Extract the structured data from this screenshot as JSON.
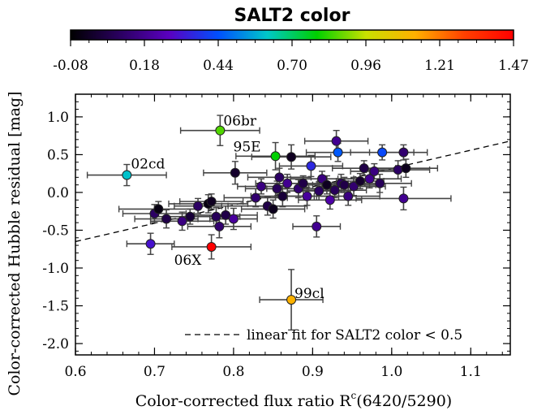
{
  "chart_data": {
    "type": "scatter",
    "colorbar": {
      "title": "SALT2 color",
      "ticks": [
        "-0.08",
        "0.18",
        "0.44",
        "0.70",
        "0.96",
        "1.21",
        "1.47"
      ],
      "range": [
        -0.08,
        1.47
      ],
      "colors": [
        "#000000",
        "#2a0060",
        "#5a00c0",
        "#0050ff",
        "#00c8c8",
        "#00d000",
        "#c8e000",
        "#ffb000",
        "#ff4000",
        "#ff0000"
      ]
    },
    "xlabel": "Color-corrected flux ratio R",
    "xlabel_sup": "c",
    "xlabel_suffix": "(6420/5290)",
    "ylabel": "Color-corrected Hubble residual   [mag]",
    "xlim": [
      0.6,
      1.15
    ],
    "ylim": [
      -2.15,
      1.3
    ],
    "xticks": [
      {
        "value": 0.6,
        "label": "0.6"
      },
      {
        "value": 0.7,
        "label": "0.7"
      },
      {
        "value": 0.8,
        "label": "0.8"
      },
      {
        "value": 0.9,
        "label": "0.9"
      },
      {
        "value": 1.0,
        "label": "1.0"
      },
      {
        "value": 1.1,
        "label": "1.1"
      }
    ],
    "yticks": [
      {
        "value": 1.0,
        "label": "1.0"
      },
      {
        "value": 0.5,
        "label": "0.5"
      },
      {
        "value": 0.0,
        "label": "0.0"
      },
      {
        "value": -0.5,
        "label": "-0.5"
      },
      {
        "value": -1.0,
        "label": "-1.0"
      },
      {
        "value": -1.5,
        "label": "-1.5"
      },
      {
        "value": -2.0,
        "label": "-2.0"
      }
    ],
    "fit_line": {
      "x": [
        0.6,
        1.15
      ],
      "y": [
        -0.65,
        0.68
      ]
    },
    "legend": {
      "label": "linear fit for SALT2 color < 0.5",
      "position": "bottom-right"
    },
    "points": [
      {
        "x": 0.665,
        "y": 0.23,
        "xerr": 0.05,
        "yerr": 0.14,
        "c": 0.6,
        "label": "02cd"
      },
      {
        "x": 0.783,
        "y": 0.82,
        "xerr": 0.05,
        "yerr": 0.2,
        "c": 0.85,
        "label": "06br"
      },
      {
        "x": 0.853,
        "y": 0.48,
        "xerr": 0.05,
        "yerr": 0.18,
        "c": 0.78,
        "label": "95E"
      },
      {
        "x": 0.772,
        "y": -0.72,
        "xerr": 0.05,
        "yerr": 0.16,
        "c": 1.47,
        "label": "06X"
      },
      {
        "x": 0.873,
        "y": -1.42,
        "xerr": 0.04,
        "yerr": 0.4,
        "c": 1.12,
        "label": "99cl"
      },
      {
        "x": 0.695,
        "y": -0.68,
        "xerr": 0.03,
        "yerr": 0.14,
        "c": 0.3
      },
      {
        "x": 0.7,
        "y": -0.28,
        "xerr": 0.04,
        "yerr": 0.12,
        "c": 0.1
      },
      {
        "x": 0.705,
        "y": -0.22,
        "xerr": 0.05,
        "yerr": 0.1,
        "c": -0.05
      },
      {
        "x": 0.715,
        "y": -0.35,
        "xerr": 0.04,
        "yerr": 0.12,
        "c": 0.05
      },
      {
        "x": 0.735,
        "y": -0.38,
        "xerr": 0.04,
        "yerr": 0.12,
        "c": 0.15
      },
      {
        "x": 0.745,
        "y": -0.32,
        "xerr": 0.05,
        "yerr": 0.1,
        "c": 0.02
      },
      {
        "x": 0.755,
        "y": -0.18,
        "xerr": 0.03,
        "yerr": 0.1,
        "c": 0.1
      },
      {
        "x": 0.768,
        "y": -0.15,
        "xerr": 0.05,
        "yerr": 0.12,
        "c": -0.05
      },
      {
        "x": 0.772,
        "y": -0.12,
        "xerr": 0.04,
        "yerr": 0.1,
        "c": -0.02
      },
      {
        "x": 0.778,
        "y": -0.32,
        "xerr": 0.03,
        "yerr": 0.12,
        "c": 0.08
      },
      {
        "x": 0.782,
        "y": -0.45,
        "xerr": 0.04,
        "yerr": 0.15,
        "c": 0.12
      },
      {
        "x": 0.79,
        "y": -0.3,
        "xerr": 0.04,
        "yerr": 0.12,
        "c": 0.05
      },
      {
        "x": 0.8,
        "y": -0.35,
        "xerr": 0.03,
        "yerr": 0.14,
        "c": 0.2
      },
      {
        "x": 0.802,
        "y": 0.26,
        "xerr": 0.04,
        "yerr": 0.15,
        "c": 0.0
      },
      {
        "x": 0.828,
        "y": -0.07,
        "xerr": 0.04,
        "yerr": 0.12,
        "c": 0.12
      },
      {
        "x": 0.835,
        "y": 0.08,
        "xerr": 0.03,
        "yerr": 0.1,
        "c": 0.15
      },
      {
        "x": 0.843,
        "y": -0.18,
        "xerr": 0.05,
        "yerr": 0.12,
        "c": 0.05
      },
      {
        "x": 0.85,
        "y": -0.22,
        "xerr": 0.04,
        "yerr": 0.12,
        "c": -0.03
      },
      {
        "x": 0.855,
        "y": 0.05,
        "xerr": 0.04,
        "yerr": 0.1,
        "c": 0.08
      },
      {
        "x": 0.858,
        "y": 0.2,
        "xerr": 0.04,
        "yerr": 0.12,
        "c": 0.1
      },
      {
        "x": 0.862,
        "y": -0.05,
        "xerr": 0.04,
        "yerr": 0.14,
        "c": 0.02
      },
      {
        "x": 0.868,
        "y": 0.12,
        "xerr": 0.04,
        "yerr": 0.12,
        "c": 0.18
      },
      {
        "x": 0.873,
        "y": 0.47,
        "xerr": 0.05,
        "yerr": 0.16,
        "c": -0.02
      },
      {
        "x": 0.882,
        "y": 0.05,
        "xerr": 0.04,
        "yerr": 0.12,
        "c": 0.12
      },
      {
        "x": 0.888,
        "y": 0.12,
        "xerr": 0.03,
        "yerr": 0.1,
        "c": 0.05
      },
      {
        "x": 0.893,
        "y": -0.05,
        "xerr": 0.04,
        "yerr": 0.12,
        "c": 0.2
      },
      {
        "x": 0.898,
        "y": 0.35,
        "xerr": 0.04,
        "yerr": 0.14,
        "c": 0.35
      },
      {
        "x": 0.905,
        "y": -0.45,
        "xerr": 0.03,
        "yerr": 0.14,
        "c": 0.18
      },
      {
        "x": 0.908,
        "y": 0.02,
        "xerr": 0.04,
        "yerr": 0.12,
        "c": 0.1
      },
      {
        "x": 0.912,
        "y": 0.18,
        "xerr": 0.04,
        "yerr": 0.1,
        "c": 0.15
      },
      {
        "x": 0.918,
        "y": 0.1,
        "xerr": 0.03,
        "yerr": 0.12,
        "c": -0.02
      },
      {
        "x": 0.922,
        "y": -0.1,
        "xerr": 0.04,
        "yerr": 0.12,
        "c": 0.22
      },
      {
        "x": 0.928,
        "y": 0.03,
        "xerr": 0.04,
        "yerr": 0.1,
        "c": 0.08
      },
      {
        "x": 0.93,
        "y": 0.68,
        "xerr": 0.04,
        "yerr": 0.14,
        "c": 0.18
      },
      {
        "x": 0.932,
        "y": 0.53,
        "xerr": 0.04,
        "yerr": 0.12,
        "c": 0.45
      },
      {
        "x": 0.936,
        "y": 0.12,
        "xerr": 0.03,
        "yerr": 0.12,
        "c": 0.1
      },
      {
        "x": 0.94,
        "y": 0.1,
        "xerr": 0.04,
        "yerr": 0.1,
        "c": 0.05
      },
      {
        "x": 0.945,
        "y": -0.05,
        "xerr": 0.04,
        "yerr": 0.12,
        "c": 0.15
      },
      {
        "x": 0.952,
        "y": 0.08,
        "xerr": 0.04,
        "yerr": 0.12,
        "c": 0.12
      },
      {
        "x": 0.96,
        "y": 0.15,
        "xerr": 0.03,
        "yerr": 0.1,
        "c": 0.0
      },
      {
        "x": 0.965,
        "y": 0.32,
        "xerr": 0.04,
        "yerr": 0.1,
        "c": 0.05
      },
      {
        "x": 0.972,
        "y": 0.18,
        "xerr": 0.04,
        "yerr": 0.12,
        "c": 0.18
      },
      {
        "x": 0.978,
        "y": 0.28,
        "xerr": 0.03,
        "yerr": 0.1,
        "c": 0.15
      },
      {
        "x": 0.985,
        "y": 0.12,
        "xerr": 0.04,
        "yerr": 0.12,
        "c": 0.08
      },
      {
        "x": 0.988,
        "y": 0.53,
        "xerr": 0.04,
        "yerr": 0.1,
        "c": 0.42
      },
      {
        "x": 1.008,
        "y": 0.3,
        "xerr": 0.04,
        "yerr": 0.12,
        "c": 0.1
      },
      {
        "x": 1.015,
        "y": 0.53,
        "xerr": 0.03,
        "yerr": 0.1,
        "c": 0.12
      },
      {
        "x": 1.018,
        "y": 0.32,
        "xerr": 0.04,
        "yerr": 0.12,
        "c": -0.03
      },
      {
        "x": 1.015,
        "y": -0.08,
        "xerr": 0.06,
        "yerr": 0.15,
        "c": 0.18
      }
    ]
  }
}
